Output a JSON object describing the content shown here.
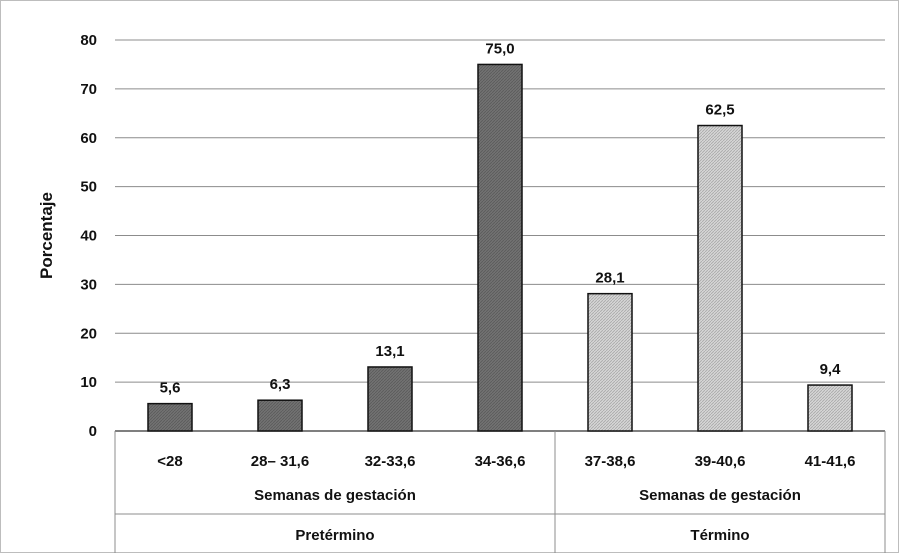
{
  "chart_data": {
    "type": "bar",
    "ylabel": "Porcentaje",
    "ylim": [
      0,
      80
    ],
    "yticks": [
      0,
      10,
      20,
      30,
      40,
      50,
      60,
      70,
      80
    ],
    "grid": true,
    "categories": [
      "<28",
      "28– 31,6",
      "32-33,6",
      "34-36,6",
      "37-38,6",
      "39-40,6",
      "41-41,6"
    ],
    "values": [
      5.6,
      6.3,
      13.1,
      75.0,
      28.1,
      62.5,
      9.4
    ],
    "data_labels": [
      "5,6",
      "6,3",
      "13,1",
      "75,0",
      "28,1",
      "62,5",
      "9,4"
    ],
    "groups": [
      {
        "name": "Pretérmino",
        "sublabel": "Semanas de gestación",
        "categories": [
          0,
          1,
          2,
          3
        ],
        "color": "#6e6e6e"
      },
      {
        "name": "Término",
        "sublabel": "Semanas de gestación",
        "categories": [
          4,
          5,
          6
        ],
        "color": "#d0d0d0"
      }
    ]
  }
}
